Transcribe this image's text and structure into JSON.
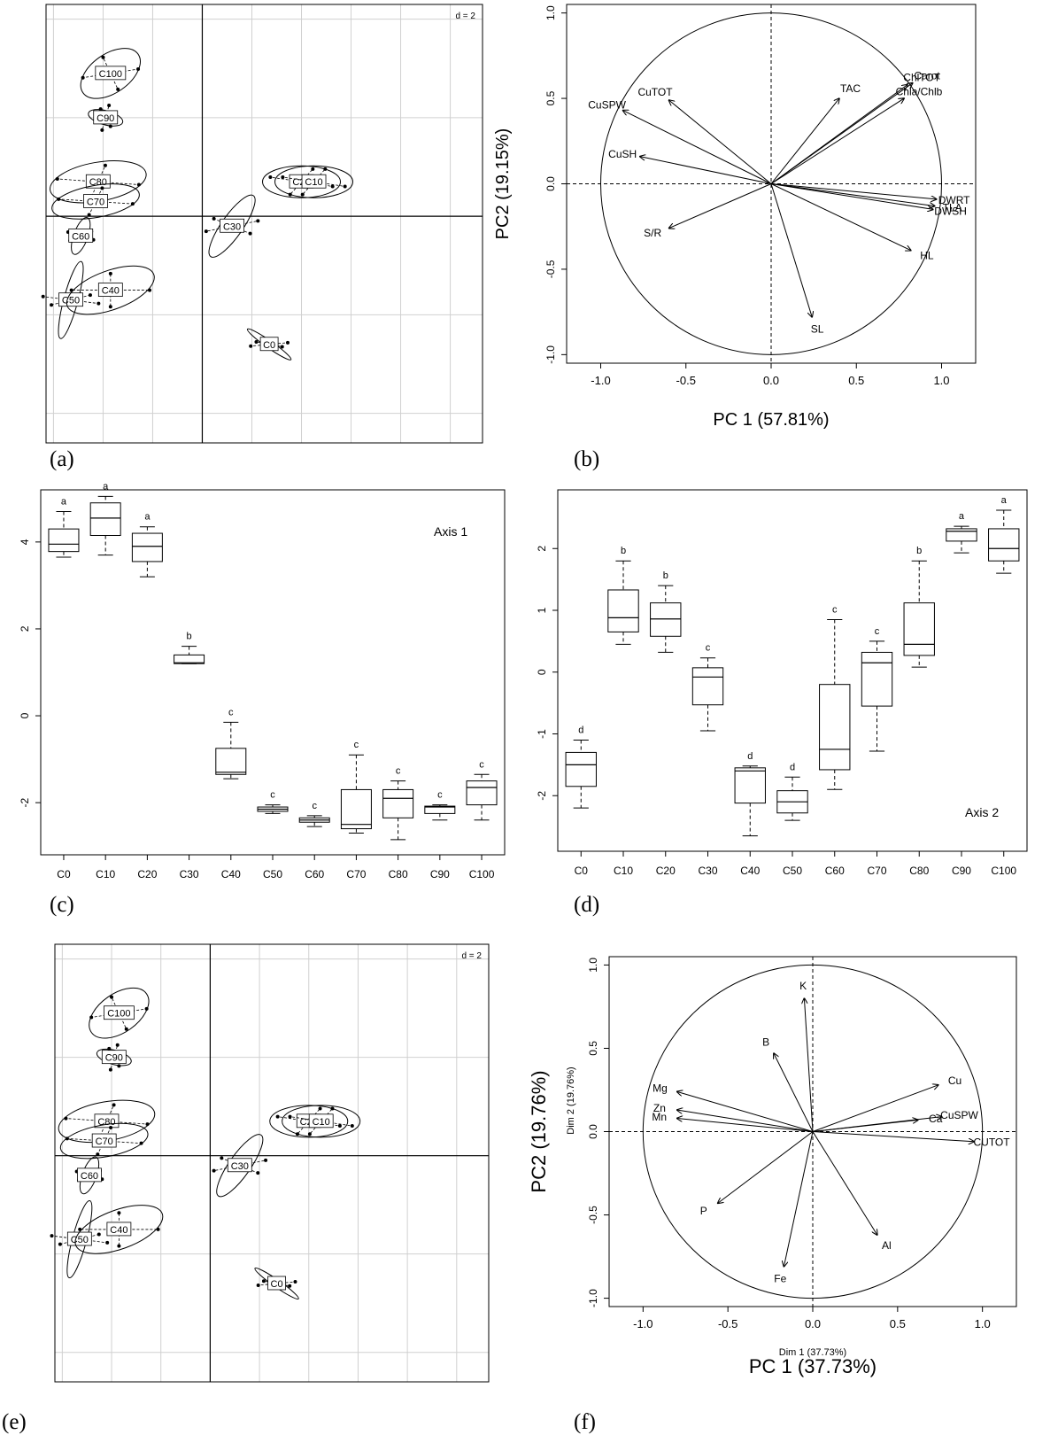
{
  "panel_labels": [
    "(a)",
    "(b)",
    "(c)",
    "(d)",
    "(e)",
    "(f)"
  ],
  "chart_data": [
    {
      "panel": "(a)",
      "type": "scatter",
      "scale_label": "d = 2",
      "grid": true,
      "groups": [
        {
          "name": "C100",
          "x": -3.7,
          "y": 2.9
        },
        {
          "name": "C90",
          "x": -3.9,
          "y": 2.0
        },
        {
          "name": "C80",
          "x": -4.2,
          "y": 0.7
        },
        {
          "name": "C70",
          "x": -4.3,
          "y": 0.3
        },
        {
          "name": "C60",
          "x": -4.9,
          "y": -0.4
        },
        {
          "name": "C50",
          "x": -5.3,
          "y": -1.7
        },
        {
          "name": "C40",
          "x": -3.7,
          "y": -1.5
        },
        {
          "name": "C30",
          "x": 1.2,
          "y": -0.2
        },
        {
          "name": "C20",
          "x": 4.0,
          "y": 0.7
        },
        {
          "name": "C10",
          "x": 4.5,
          "y": 0.7
        },
        {
          "name": "C0",
          "x": 2.7,
          "y": -2.6
        }
      ]
    },
    {
      "panel": "(b)",
      "type": "scatter",
      "xlabel": "PC 1 (57.81%)",
      "ylabel": "PC2 (19.15%)",
      "xticks": [
        "-1.0",
        "-0.5",
        "0.0",
        "0.5",
        "1.0"
      ],
      "yticks": [
        "1.0",
        "0.5",
        "0.0",
        "-0.5",
        "-1.0"
      ],
      "xlim": [
        -1.2,
        1.2
      ],
      "ylim": [
        -1.05,
        1.05
      ],
      "vectors": [
        {
          "name": "Carot",
          "x": 0.83,
          "y": 0.59
        },
        {
          "name": "ChlTOT",
          "x": 0.8,
          "y": 0.58
        },
        {
          "name": "Chla/Chlb",
          "x": 0.78,
          "y": 0.5
        },
        {
          "name": "TAC",
          "x": 0.4,
          "y": 0.5
        },
        {
          "name": "CuTOT",
          "x": -0.6,
          "y": 0.49
        },
        {
          "name": "CuSPW",
          "x": -0.87,
          "y": 0.43
        },
        {
          "name": "CuSH",
          "x": -0.77,
          "y": 0.16
        },
        {
          "name": "DWRT",
          "x": 0.97,
          "y": -0.09
        },
        {
          "name": "TLA",
          "x": 0.96,
          "y": -0.13
        },
        {
          "name": "DWSH",
          "x": 0.95,
          "y": -0.15
        },
        {
          "name": "HL",
          "x": 0.82,
          "y": -0.39
        },
        {
          "name": "SL",
          "x": 0.24,
          "y": -0.78
        },
        {
          "name": "S/R",
          "x": -0.6,
          "y": -0.26
        }
      ]
    },
    {
      "panel": "(c)",
      "type": "box",
      "annotation": "Axis 1",
      "categories": [
        "C0",
        "C10",
        "C20",
        "C30",
        "C40",
        "C50",
        "C60",
        "C70",
        "C80",
        "C90",
        "C100"
      ],
      "yticks": [
        "4",
        "2",
        "0",
        "-2"
      ],
      "ylim": [
        -3.2,
        5.2
      ],
      "boxes": [
        {
          "min": 3.65,
          "q1": 3.78,
          "median": 3.95,
          "q3": 4.3,
          "max": 4.7,
          "letter": "a"
        },
        {
          "min": 3.7,
          "q1": 4.15,
          "median": 4.55,
          "q3": 4.9,
          "max": 5.05,
          "letter": "a"
        },
        {
          "min": 3.2,
          "q1": 3.55,
          "median": 3.9,
          "q3": 4.2,
          "max": 4.35,
          "letter": "a"
        },
        {
          "min": 1.2,
          "q1": 1.2,
          "median": 1.22,
          "q3": 1.4,
          "max": 1.6,
          "letter": "b"
        },
        {
          "min": -1.45,
          "q1": -1.35,
          "median": -1.3,
          "q3": -0.75,
          "max": -0.15,
          "letter": "c"
        },
        {
          "min": -2.25,
          "q1": -2.2,
          "median": -2.15,
          "q3": -2.1,
          "max": -2.05,
          "letter": "c"
        },
        {
          "min": -2.55,
          "q1": -2.45,
          "median": -2.4,
          "q3": -2.35,
          "max": -2.3,
          "letter": "c"
        },
        {
          "min": -2.7,
          "q1": -2.6,
          "median": -2.5,
          "q3": -1.7,
          "max": -0.9,
          "letter": "c"
        },
        {
          "min": -2.85,
          "q1": -2.35,
          "median": -1.9,
          "q3": -1.7,
          "max": -1.5,
          "letter": "c"
        },
        {
          "min": -2.4,
          "q1": -2.25,
          "median": -2.1,
          "q3": -2.08,
          "max": -2.05,
          "letter": "c"
        },
        {
          "min": -2.4,
          "q1": -2.05,
          "median": -1.65,
          "q3": -1.5,
          "max": -1.35,
          "letter": "c"
        }
      ]
    },
    {
      "panel": "(d)",
      "type": "box",
      "annotation": "Axis 2",
      "categories": [
        "C0",
        "C10",
        "C20",
        "C30",
        "C40",
        "C50",
        "C60",
        "C70",
        "C80",
        "C90",
        "C100"
      ],
      "yticks": [
        "2",
        "1",
        "0",
        "-1",
        "-2"
      ],
      "ylim": [
        -2.9,
        2.95
      ],
      "boxes": [
        {
          "min": -2.2,
          "q1": -1.85,
          "median": -1.5,
          "q3": -1.3,
          "max": -1.1,
          "letter": "d"
        },
        {
          "min": 0.45,
          "q1": 0.65,
          "median": 0.88,
          "q3": 1.33,
          "max": 1.8,
          "letter": "b"
        },
        {
          "min": 0.32,
          "q1": 0.58,
          "median": 0.86,
          "q3": 1.12,
          "max": 1.4,
          "letter": "b"
        },
        {
          "min": -0.95,
          "q1": -0.53,
          "median": -0.08,
          "q3": 0.07,
          "max": 0.23,
          "letter": "c"
        },
        {
          "min": -2.65,
          "q1": -2.12,
          "median": -1.6,
          "q3": -1.55,
          "max": -1.52,
          "letter": "d"
        },
        {
          "min": -2.4,
          "q1": -2.28,
          "median": -2.1,
          "q3": -1.92,
          "max": -1.7,
          "letter": "d"
        },
        {
          "min": -1.9,
          "q1": -1.58,
          "median": -1.25,
          "q3": -0.2,
          "max": 0.85,
          "letter": "c"
        },
        {
          "min": -1.28,
          "q1": -0.55,
          "median": 0.15,
          "q3": 0.32,
          "max": 0.5,
          "letter": "c"
        },
        {
          "min": 0.08,
          "q1": 0.27,
          "median": 0.45,
          "q3": 1.12,
          "max": 1.8,
          "letter": "b"
        },
        {
          "min": 1.93,
          "q1": 2.12,
          "median": 2.28,
          "q3": 2.32,
          "max": 2.36,
          "letter": "a"
        },
        {
          "min": 1.6,
          "q1": 1.8,
          "median": 2.0,
          "q3": 2.32,
          "max": 2.62,
          "letter": "a"
        }
      ]
    },
    {
      "panel": "(e)",
      "type": "scatter",
      "scale_label": "d = 2",
      "grid": true,
      "groups": [
        {
          "name": "C100",
          "x": -3.7,
          "y": 2.9
        },
        {
          "name": "C90",
          "x": -3.9,
          "y": 2.0
        },
        {
          "name": "C80",
          "x": -4.2,
          "y": 0.7
        },
        {
          "name": "C70",
          "x": -4.3,
          "y": 0.3
        },
        {
          "name": "C60",
          "x": -4.9,
          "y": -0.4
        },
        {
          "name": "C50",
          "x": -5.3,
          "y": -1.7
        },
        {
          "name": "C40",
          "x": -3.7,
          "y": -1.5
        },
        {
          "name": "C30",
          "x": 1.2,
          "y": -0.2
        },
        {
          "name": "C20",
          "x": 4.0,
          "y": 0.7
        },
        {
          "name": "C10",
          "x": 4.5,
          "y": 0.7
        },
        {
          "name": "C0",
          "x": 2.7,
          "y": -2.6
        }
      ]
    },
    {
      "panel": "(f)",
      "type": "scatter",
      "xlabel": "PC 1 (37.73%)",
      "ylabel": "PC2 (19.76%)",
      "xlabel_small": "Dim 1 (37.73%)",
      "ylabel_small": "Dim 2 (19.76%)",
      "xticks": [
        "-1.0",
        "-0.5",
        "0.0",
        "0.5",
        "1.0"
      ],
      "yticks": [
        "1.0",
        "0.5",
        "0.0",
        "-0.5",
        "-1.0"
      ],
      "xlim": [
        -1.2,
        1.2
      ],
      "ylim": [
        -1.05,
        1.05
      ],
      "vectors": [
        {
          "name": "K",
          "x": -0.05,
          "y": 0.8
        },
        {
          "name": "B",
          "x": -0.23,
          "y": 0.47
        },
        {
          "name": "Cu",
          "x": 0.74,
          "y": 0.28
        },
        {
          "name": "Ca",
          "x": 0.62,
          "y": 0.07
        },
        {
          "name": "CuSPW",
          "x": 0.76,
          "y": 0.09
        },
        {
          "name": "CUTOT",
          "x": 0.95,
          "y": -0.06
        },
        {
          "name": "Mg",
          "x": -0.8,
          "y": 0.24
        },
        {
          "name": "Zn",
          "x": -0.8,
          "y": 0.13
        },
        {
          "name": "Mn",
          "x": -0.8,
          "y": 0.08
        },
        {
          "name": "P",
          "x": -0.56,
          "y": -0.43
        },
        {
          "name": "Fe",
          "x": -0.17,
          "y": -0.81
        },
        {
          "name": "Al",
          "x": 0.38,
          "y": -0.62
        }
      ]
    }
  ]
}
